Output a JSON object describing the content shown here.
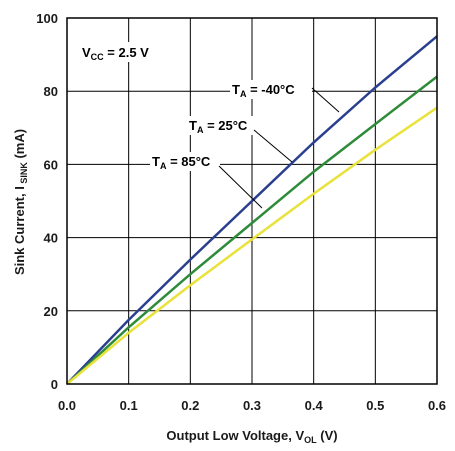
{
  "chart_data": {
    "type": "line",
    "xlabel": {
      "main": "Output Low Voltage, V",
      "sub": "OL",
      "unit": " (V)"
    },
    "ylabel": {
      "main": "Sink Current, I",
      "sub": " SINK",
      "unit": " (mA)"
    },
    "xlim": [
      0,
      0.6
    ],
    "ylim": [
      0,
      100
    ],
    "x_ticks": [
      "0.0",
      "0.1",
      "0.2",
      "0.3",
      "0.4",
      "0.5",
      "0.6"
    ],
    "y_ticks": [
      "0",
      "20",
      "40",
      "60",
      "80",
      "100"
    ],
    "grid": true,
    "condition": {
      "main": "V",
      "sub": "CC",
      "value": " = 2.5 V"
    },
    "series": [
      {
        "name": "T_A = -40°C",
        "label_main": "T",
        "label_sub": "A",
        "label_value": " = -40°C",
        "color": "#2a3f8f",
        "x": [
          0,
          0.1,
          0.2,
          0.3,
          0.4,
          0.5,
          0.6
        ],
        "y": [
          0,
          17.5,
          34,
          50,
          66,
          81,
          95
        ]
      },
      {
        "name": "T_A = 25°C",
        "label_main": "T",
        "label_sub": "A",
        "label_value": " = 25°C",
        "color": "#2e8b3a",
        "x": [
          0,
          0.1,
          0.2,
          0.3,
          0.4,
          0.5,
          0.6
        ],
        "y": [
          0,
          15.5,
          30,
          44,
          58,
          71,
          84
        ]
      },
      {
        "name": "T_A = 85°C",
        "label_main": "T",
        "label_sub": "A",
        "label_value": " = 85°C",
        "color": "#e8e23a",
        "x": [
          0,
          0.1,
          0.2,
          0.3,
          0.4,
          0.5,
          0.6
        ],
        "y": [
          0,
          14,
          27,
          39.5,
          52,
          64,
          75.5
        ]
      }
    ]
  }
}
